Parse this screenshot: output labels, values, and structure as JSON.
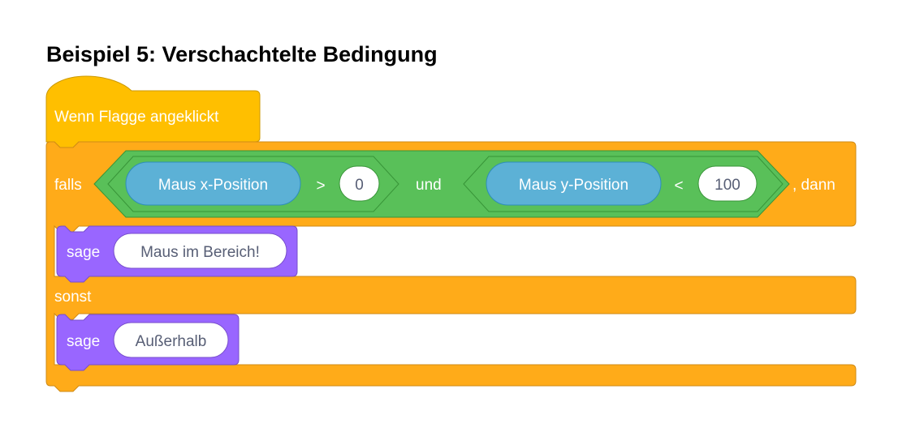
{
  "title": "Beispiel 5: Verschachtelte Bedingung",
  "colors": {
    "event": "#ffbf00",
    "control": "#ffab19",
    "operator": "#59c059",
    "sensing": "#5cb1d6",
    "looks": "#9966ff"
  },
  "hat_block": {
    "label": "Wenn Flagge angeklickt"
  },
  "if_block": {
    "falls_label": "falls",
    "dann_label": ", dann",
    "and_label": "und",
    "left_condition": {
      "reporter": "Maus x-Position",
      "operator": ">",
      "value": "0"
    },
    "right_condition": {
      "reporter": "Maus y-Position",
      "operator": "<",
      "value": "100"
    },
    "else_label": "sonst"
  },
  "then_block": {
    "label": "sage",
    "value": "Maus im Bereich!"
  },
  "else_block": {
    "label": "sage",
    "value": "Außerhalb"
  }
}
